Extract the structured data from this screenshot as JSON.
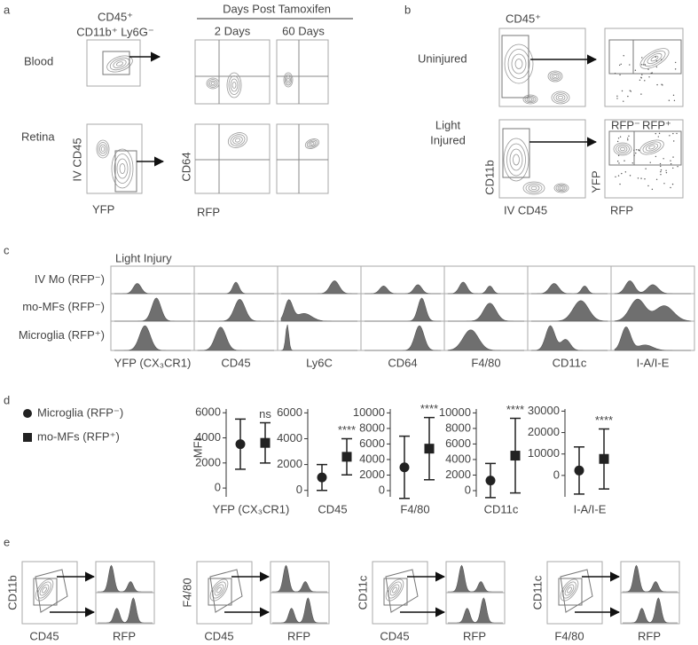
{
  "panel_labels": [
    "a",
    "b",
    "c",
    "d",
    "e"
  ],
  "a": {
    "gate_title": [
      "CD45⁺",
      "CD11b⁺ Ly6G⁻"
    ],
    "header": "Days Post Tamoxifen",
    "columns": [
      "2 Days",
      "60 Days"
    ],
    "rows": [
      "Blood",
      "Retina"
    ],
    "y_gate": "IV CD45",
    "x_gate": "YFP",
    "y_time": "CD64",
    "x_time": "RFP"
  },
  "b": {
    "title": "CD45⁺",
    "rows": [
      [
        "Uninjured"
      ],
      [
        "Light",
        "Injured"
      ]
    ],
    "y_left": "CD11b",
    "x_left": "IV CD45",
    "y_right": "YFP",
    "x_right": "RFP",
    "gates": [
      "RFP⁻",
      "RFP⁺"
    ]
  },
  "c": {
    "title": "Light Injury",
    "rows": [
      "IV Mo (RFP⁻)",
      "mo-MFs (RFP⁻)",
      "Microglia (RFP⁺)"
    ],
    "columns": [
      "YFP (CX₃CR1)",
      "CD45",
      "Ly6C",
      "CD64",
      "F4/80",
      "CD11c",
      "I-A/I-E"
    ]
  },
  "d": {
    "legend": [
      "Microglia (RFP⁻)",
      "mo-MFs (RFP⁺)"
    ],
    "ylabel": "MFI"
  },
  "chart_data": [
    {
      "type": "errorbar",
      "xlabel": "YFP (CX₃CR1)",
      "values": [
        3500,
        3600
      ],
      "errors": [
        2000,
        1600
      ],
      "annotation": "ns",
      "ylim": [
        -700,
        6300
      ],
      "yticks": [
        0,
        2000,
        4000,
        6000
      ]
    },
    {
      "type": "errorbar",
      "xlabel": "CD45",
      "values": [
        1000,
        2600
      ],
      "errors": [
        1000,
        1400
      ],
      "annotation": "****",
      "ylim": [
        -500,
        6300
      ],
      "yticks": [
        0,
        2000,
        4000,
        6000
      ]
    },
    {
      "type": "errorbar",
      "xlabel": "F4/80",
      "values": [
        3000,
        5400
      ],
      "errors": [
        4000,
        4000
      ],
      "annotation": "****",
      "ylim": [
        -800,
        10500
      ],
      "yticks": [
        0,
        2000,
        4000,
        6000,
        8000,
        10000
      ]
    },
    {
      "type": "errorbar",
      "xlabel": "CD11c",
      "values": [
        1300,
        4500
      ],
      "errors": [
        2200,
        4800
      ],
      "annotation": "****",
      "ylim": [
        -800,
        10500
      ],
      "yticks": [
        0,
        2000,
        4000,
        6000,
        8000,
        10000
      ]
    },
    {
      "type": "errorbar",
      "xlabel": "I-A/I-E",
      "values": [
        2300,
        7700
      ],
      "errors": [
        11000,
        14000
      ],
      "annotation": "****",
      "ylim": [
        -10000,
        31000
      ],
      "yticks": [
        0,
        10000,
        20000,
        30000
      ]
    }
  ],
  "e": {
    "groups": [
      {
        "y": "CD11b",
        "x": "CD45"
      },
      {
        "y": "F4/80",
        "x": "CD45"
      },
      {
        "y": "CD11c",
        "x": "CD45"
      },
      {
        "y": "CD11c",
        "x": "F4/80"
      }
    ],
    "hist_x": "RFP"
  }
}
